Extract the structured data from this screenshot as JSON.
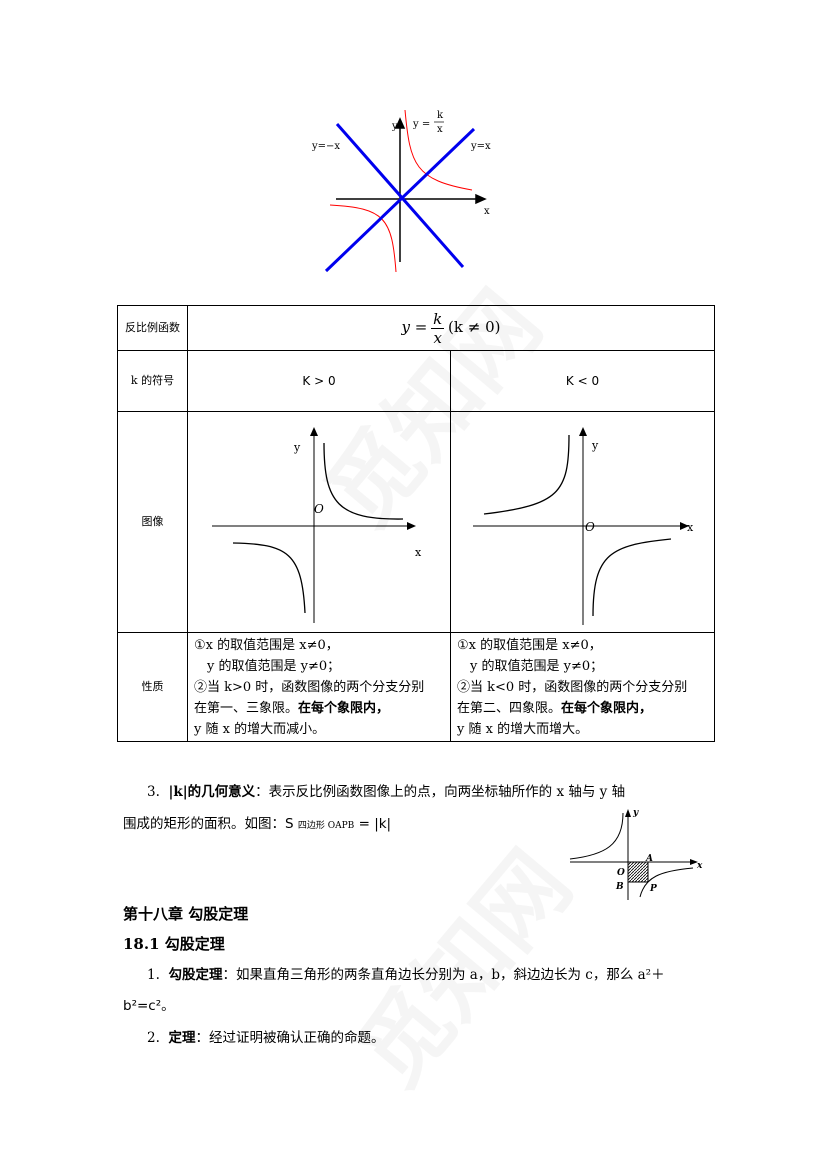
{
  "top_figure": {
    "label_neg": "y=−x",
    "label_pos": "y=x",
    "label_hyper_lhs": "y =",
    "label_hyper_num": "k",
    "label_hyper_den": "x",
    "axis_y": "y",
    "axis_x": "x",
    "colors": {
      "lines": "#0000ee",
      "curve": "#ff0000"
    }
  },
  "table": {
    "row1_label": "反比例函数",
    "formula": "y = k/x (k ≠ 0)",
    "formula_lhs": "y =",
    "formula_num": "k",
    "formula_den": "x",
    "formula_cond": "(k ≠ 0)",
    "row2_label": "k 的符号",
    "k_pos": "K > 0",
    "k_neg": "K < 0",
    "row3_label": "图像",
    "graph_y": "y",
    "graph_x": "x",
    "graph_o": "O",
    "row4_label": "性质",
    "left_props": [
      "①x 的取值范围是 x≠0，",
      "　y 的取值范围是 y≠0；",
      "②当 k>0 时，函数图像的两个分支分别",
      "在第一、三象限。",
      "在每个象限内，",
      "y 随 x  的增大而减小。"
    ],
    "right_props": [
      "①x 的取值范围是 x≠0，",
      "　y 的取值范围是 y≠0；",
      "②当 k<0 时，函数图像的两个分支分别",
      "在第二、四象限。",
      "在每个象限内，",
      "y 随 x  的增大而增大。"
    ]
  },
  "section3": {
    "num": "3.",
    "term": "|k|的几何意义",
    "text1": "：表示反比例函数图像上的点，向两坐标轴所作的 x 轴与 y 轴",
    "text2": "围成的矩形的面积。如图：",
    "formula_s": "S",
    "formula_sub": "四边形 OAPB",
    "formula_rhs": " = |k|"
  },
  "small_figure": {
    "y": "y",
    "x": "x",
    "o": "O",
    "a": "A",
    "b": "B",
    "p": "P"
  },
  "chapter_title": "第十八章  勾股定理",
  "section_title": "18.1  勾股定理",
  "item1": {
    "num": "1.",
    "term": "勾股定理",
    "text": "：如果直角三角形的两条直角边长分别为 a，b，斜边边长为 c，那么 a²＋",
    "text2": "b²=c²。"
  },
  "item2": {
    "num": "2.",
    "term": "定理",
    "text": "：经过证明被确认正确的命题。"
  },
  "watermark": "觅知网"
}
